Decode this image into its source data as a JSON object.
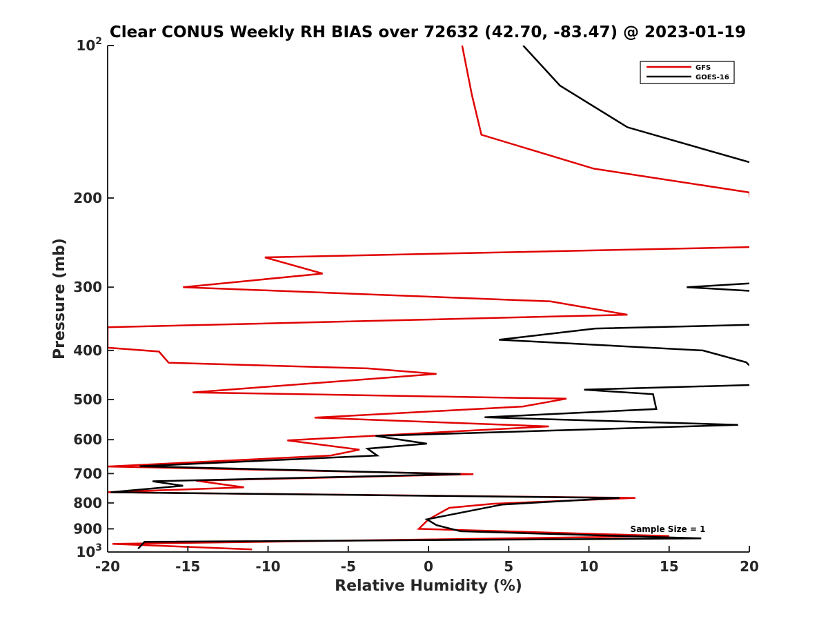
{
  "chart_data": {
    "type": "line",
    "title": "Clear CONUS Weekly RH BIAS over 72632 (42.70, -83.47) @ 2023-01-19",
    "xlabel": "Relative Humidity (%)",
    "ylabel": "Pressure (mb)",
    "xlim": [
      -20,
      20
    ],
    "ylim": [
      100,
      1000
    ],
    "y_scale": "log",
    "y_reversed": true,
    "grid": false,
    "legend_position": "top-right",
    "x_ticks": [
      -20,
      -15,
      -10,
      -5,
      0,
      5,
      10,
      15,
      20
    ],
    "x_tick_labels": [
      "-20",
      "-15",
      "-10",
      "-5",
      "0",
      "5",
      "10",
      "15",
      "20"
    ],
    "y_ticks": [
      {
        "value": 100,
        "base": "10",
        "exp": "2"
      },
      {
        "value": 200,
        "label": "200"
      },
      {
        "value": 300,
        "label": "300"
      },
      {
        "value": 400,
        "label": "400"
      },
      {
        "value": 500,
        "label": "500"
      },
      {
        "value": 600,
        "label": "600"
      },
      {
        "value": 700,
        "label": "700"
      },
      {
        "value": 800,
        "label": "800"
      },
      {
        "value": 900,
        "label": "900"
      },
      {
        "value": 1000,
        "base": "10",
        "exp": "3"
      }
    ],
    "annotation": "Sample Size = 1",
    "series": [
      {
        "name": "GFS",
        "color": "#e00000",
        "points": [
          [
            2.1,
            100
          ],
          [
            2.7,
            125
          ],
          [
            3.3,
            150
          ],
          [
            10.3,
            175
          ],
          [
            20.0,
            195
          ],
          [
            20.5,
            250
          ],
          [
            20.0,
            250
          ],
          [
            -10.2,
            262
          ],
          [
            -6.6,
            282
          ],
          [
            -15.3,
            300
          ],
          [
            7.6,
            320
          ],
          [
            12.4,
            340
          ],
          [
            -20.0,
            360
          ],
          [
            -20.0,
            395
          ],
          [
            -16.8,
            402
          ],
          [
            -16.2,
            423
          ],
          [
            -3.8,
            434
          ],
          [
            0.5,
            445
          ],
          [
            -14.7,
            484
          ],
          [
            8.6,
            498
          ],
          [
            5.9,
            516
          ],
          [
            -7.1,
            543
          ],
          [
            7.5,
            565
          ],
          [
            -8.8,
            602
          ],
          [
            -4.3,
            628
          ],
          [
            -6.1,
            645
          ],
          [
            -20.0,
            678
          ],
          [
            2.8,
            702
          ],
          [
            -14.5,
            723
          ],
          [
            -11.5,
            745
          ],
          [
            -20.0,
            762
          ],
          [
            12.9,
            782
          ],
          [
            4.0,
            803
          ],
          [
            1.3,
            818
          ],
          [
            0.0,
            862
          ],
          [
            -0.6,
            900
          ],
          [
            15.0,
            930
          ],
          [
            -19.7,
            964
          ],
          [
            -11.0,
            988
          ]
        ]
      },
      {
        "name": "GOES-16",
        "color": "#000000",
        "points": [
          [
            5.9,
            100
          ],
          [
            8.2,
            120
          ],
          [
            12.4,
            145
          ],
          [
            20.0,
            170
          ]
        ],
        "extra_segments": [
          [
            [
              20.0,
              295
            ],
            [
              16.1,
              300
            ],
            [
              20.0,
              305
            ]
          ],
          [
            [
              20.0,
              356
            ],
            [
              10.4,
              362
            ],
            [
              4.4,
              381
            ],
            [
              17.1,
              400
            ],
            [
              19.8,
              422
            ],
            [
              20.0,
              428
            ]
          ],
          [
            [
              20.0,
              468
            ],
            [
              9.7,
              478
            ],
            [
              14.0,
              488
            ],
            [
              14.2,
              522
            ],
            [
              3.5,
              542
            ],
            [
              19.3,
              561
            ],
            [
              -3.3,
              590
            ],
            [
              -0.1,
              611
            ],
            [
              -3.8,
              625
            ],
            [
              -3.2,
              645
            ],
            [
              -18.0,
              677
            ],
            [
              2.0,
              702
            ],
            [
              -17.2,
              725
            ],
            [
              -15.3,
              740
            ],
            [
              -19.8,
              762
            ],
            [
              11.9,
              782
            ],
            [
              4.6,
              806
            ],
            [
              -0.1,
              862
            ],
            [
              0.5,
              885
            ],
            [
              2.0,
              910
            ],
            [
              17.0,
              940
            ],
            [
              -17.7,
              955
            ],
            [
              -18.1,
              985
            ]
          ]
        ]
      }
    ]
  }
}
